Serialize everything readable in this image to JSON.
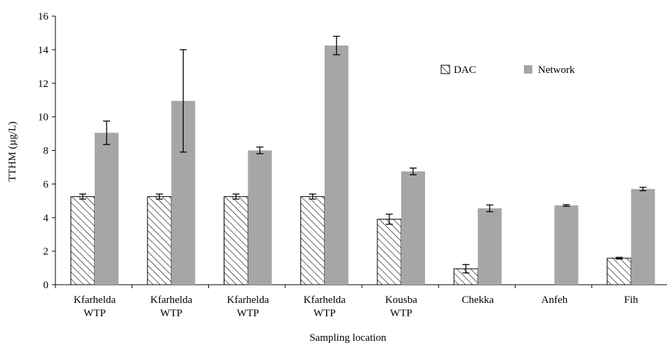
{
  "chart_data": {
    "type": "bar",
    "title": "",
    "xlabel": "Sampling location",
    "ylabel": "TTHM (µg/L)",
    "ylim": [
      0,
      16
    ],
    "yticks": [
      0,
      2,
      4,
      6,
      8,
      10,
      12,
      14,
      16
    ],
    "grid": false,
    "legend_position": "top-right",
    "categories": [
      [
        "Kfarhelda",
        "WTP"
      ],
      [
        "Kfarhelda",
        "WTP"
      ],
      [
        "Kfarhelda",
        "WTP"
      ],
      [
        "Kfarhelda",
        "WTP"
      ],
      [
        "Kousba",
        "WTP"
      ],
      [
        "Chekka"
      ],
      [
        "Anfeh"
      ],
      [
        "Fih"
      ]
    ],
    "series": [
      {
        "name": "DAC",
        "pattern": "diagonal-hatch",
        "color": "#000000",
        "values": [
          5.25,
          5.25,
          5.25,
          5.25,
          3.9,
          0.95,
          0,
          1.58
        ],
        "errors": [
          0.15,
          0.15,
          0.15,
          0.15,
          0.3,
          0.25,
          null,
          0.05
        ]
      },
      {
        "name": "Network",
        "pattern": "solid",
        "color": "#a6a6a6",
        "values": [
          9.05,
          10.95,
          8.0,
          14.25,
          6.75,
          4.55,
          4.72,
          5.7
        ],
        "errors": [
          0.7,
          3.05,
          0.2,
          0.55,
          0.2,
          0.2,
          0.05,
          0.1
        ]
      }
    ]
  }
}
